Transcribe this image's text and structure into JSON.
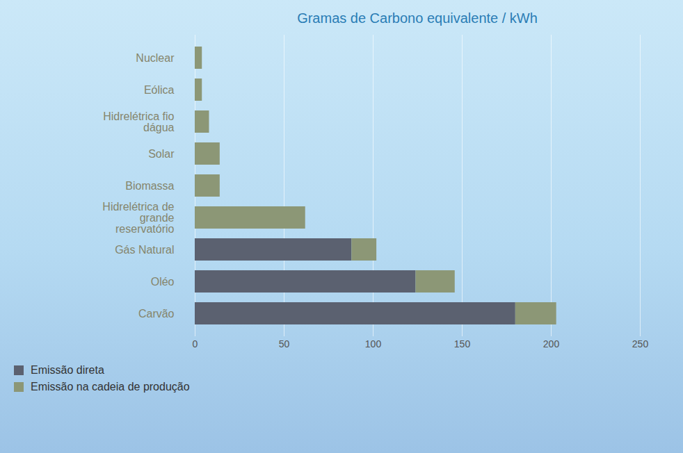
{
  "chart_data": {
    "type": "bar",
    "orientation": "horizontal",
    "stacked": true,
    "title": "Gramas de Carbono equivalente / kWh",
    "categories": [
      "Nuclear",
      "Eólica",
      "Hidrelétrica fio dágua",
      "Solar",
      "Biomassa",
      "Hidrelétrica de grande reservatório",
      "Gás Natural",
      "Oléo",
      "Carvão"
    ],
    "series": [
      {
        "name": "Emissão direta",
        "color": "#5b6170",
        "values": [
          0,
          0,
          0,
          0,
          0,
          0,
          88,
          124,
          180
        ]
      },
      {
        "name": "Emissão na cadeia de produção",
        "color": "#8c9776",
        "values": [
          4,
          4,
          8,
          14,
          14,
          62,
          14,
          22,
          23
        ]
      }
    ],
    "xlim": [
      0,
      250
    ],
    "xticks": [
      0,
      50,
      100,
      150,
      200,
      250
    ],
    "grid": true,
    "legend": "bottom-left"
  }
}
